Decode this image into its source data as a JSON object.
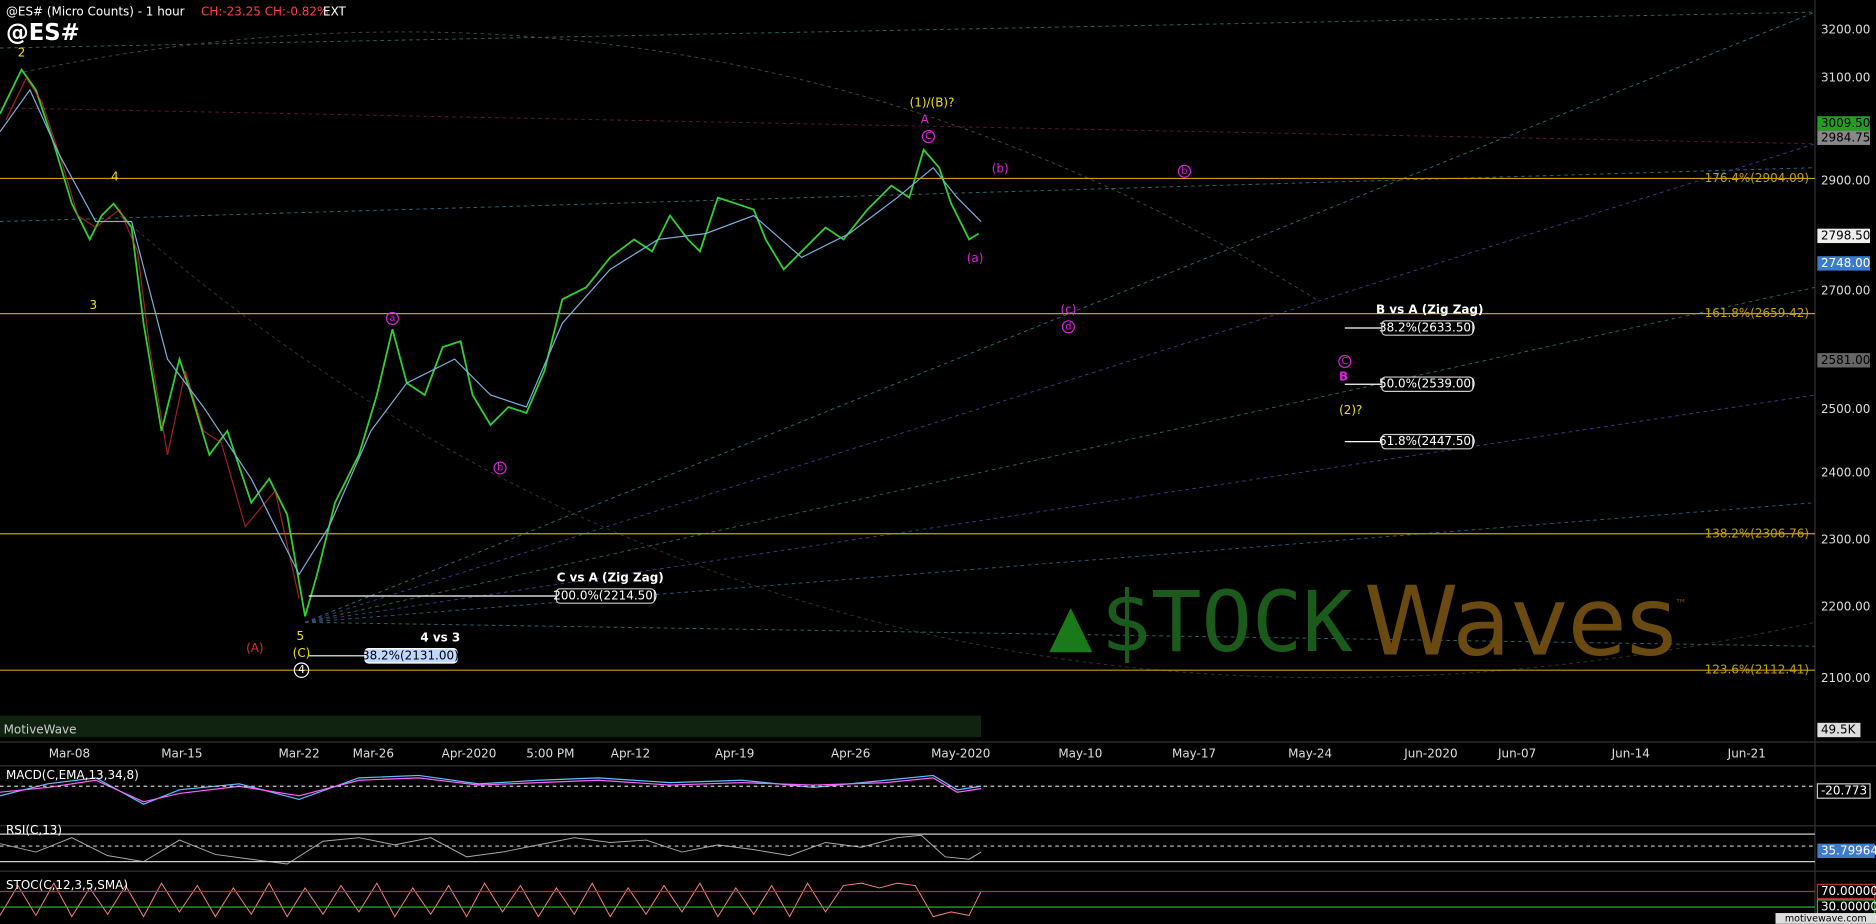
{
  "header": {
    "title": "@ES# (Micro Counts) - 1 hour",
    "change": "CH:-23.25 CH:-0.82%",
    "session": "EXT",
    "symbol": "@ES#"
  },
  "price_axis": [
    "3200.00",
    "3100.00",
    "2900.00",
    "2700.00",
    "2500.00",
    "2400.00",
    "2300.00",
    "2200.00",
    "2100.00"
  ],
  "price_tags": [
    "3009.50",
    "2984.75",
    "2798.50",
    "2748.00",
    "2581.00",
    "49.5K"
  ],
  "date_axis": [
    "Mar-08",
    "Mar-15",
    "Mar-22",
    "Mar-26",
    "Apr-2020",
    "5:00 PM",
    "Apr-12",
    "Apr-19",
    "Apr-26",
    "May-2020",
    "May-10",
    "May-17",
    "May-24",
    "Jun-2020",
    "Jun-07",
    "Jun-14",
    "Jun-21"
  ],
  "fib_levels": [
    "176.4%(2904.09)",
    "161.8%(2659.42)",
    "138.2%(2306.76)",
    "123.6%(2112.41)"
  ],
  "zigzag": {
    "b_title": "B vs A (Zig Zag)",
    "b_levels": [
      "38.2%(2633.50)",
      "50.0%(2539.00)",
      "61.8%(2447.50)"
    ],
    "c_title": "C vs A (Zig Zag)",
    "c_level": "200.0%(2214.50)",
    "w_title": "4 vs 3",
    "w_level": "38.2%(2131.00)"
  },
  "wave_labels": {
    "yellow": [
      "2",
      "4",
      "3",
      "5",
      "(C)",
      "(1)/(B)?",
      "(2)?"
    ],
    "white": [
      "4"
    ],
    "red": [
      "(A)"
    ],
    "magenta": [
      "A",
      "C",
      "(b)",
      "b",
      "(a)",
      "(c)",
      "d",
      "a",
      "b",
      "C",
      "B"
    ]
  },
  "indicators": {
    "macd": "MACD(C,EMA,13,34,8)",
    "macd_value": "-20.773",
    "rsi": "RSI(C,13)",
    "rsi_value": "35.79964",
    "stoc": "STOC(C,12,3,5,SMA)",
    "stoc_high": "70.00000",
    "stoc_low": "30.00000"
  },
  "branding": {
    "app": "MotiveWave",
    "site": "motivewave.com",
    "stock": "$TOCK",
    "waves": "Waves",
    "tm": "™"
  }
}
